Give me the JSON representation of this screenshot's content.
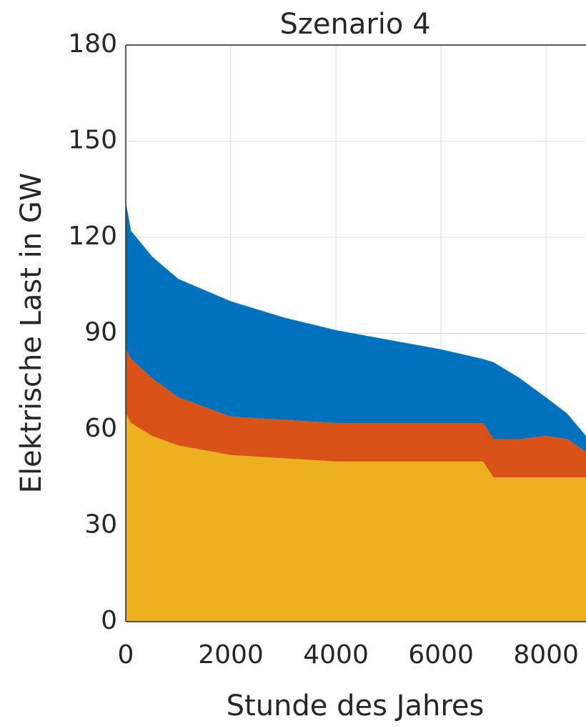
{
  "chart_data": {
    "type": "stacked-area",
    "title": "Szenario 4",
    "x_label": "Stunde des Jahres",
    "y_label": "Elektrische Last in GW",
    "x": [
      0,
      100,
      500,
      1000,
      2000,
      3000,
      4000,
      5000,
      6000,
      6800,
      7000,
      7500,
      8000,
      8400,
      8760
    ],
    "series": [
      {
        "color": "#EDB120",
        "values": [
          65,
          62,
          58,
          55,
          52,
          51,
          50,
          50,
          50,
          50,
          45,
          45,
          45,
          45,
          45
        ]
      },
      {
        "color": "#D95319",
        "values": [
          20,
          20,
          18,
          15,
          12,
          12,
          12,
          12,
          12,
          12,
          12,
          12,
          13,
          12,
          8
        ]
      },
      {
        "color": "#0072BD",
        "values": [
          46,
          40,
          38,
          37,
          36,
          32,
          29,
          26,
          23,
          20,
          24,
          19,
          12,
          8,
          5
        ]
      }
    ],
    "xlim": [
      0,
      8760
    ],
    "xticks": [
      0,
      2000,
      4000,
      6000,
      8000
    ],
    "ylim": [
      0,
      180
    ],
    "yticks": [
      0,
      30,
      60,
      90,
      120,
      150,
      180
    ],
    "grid": true
  }
}
